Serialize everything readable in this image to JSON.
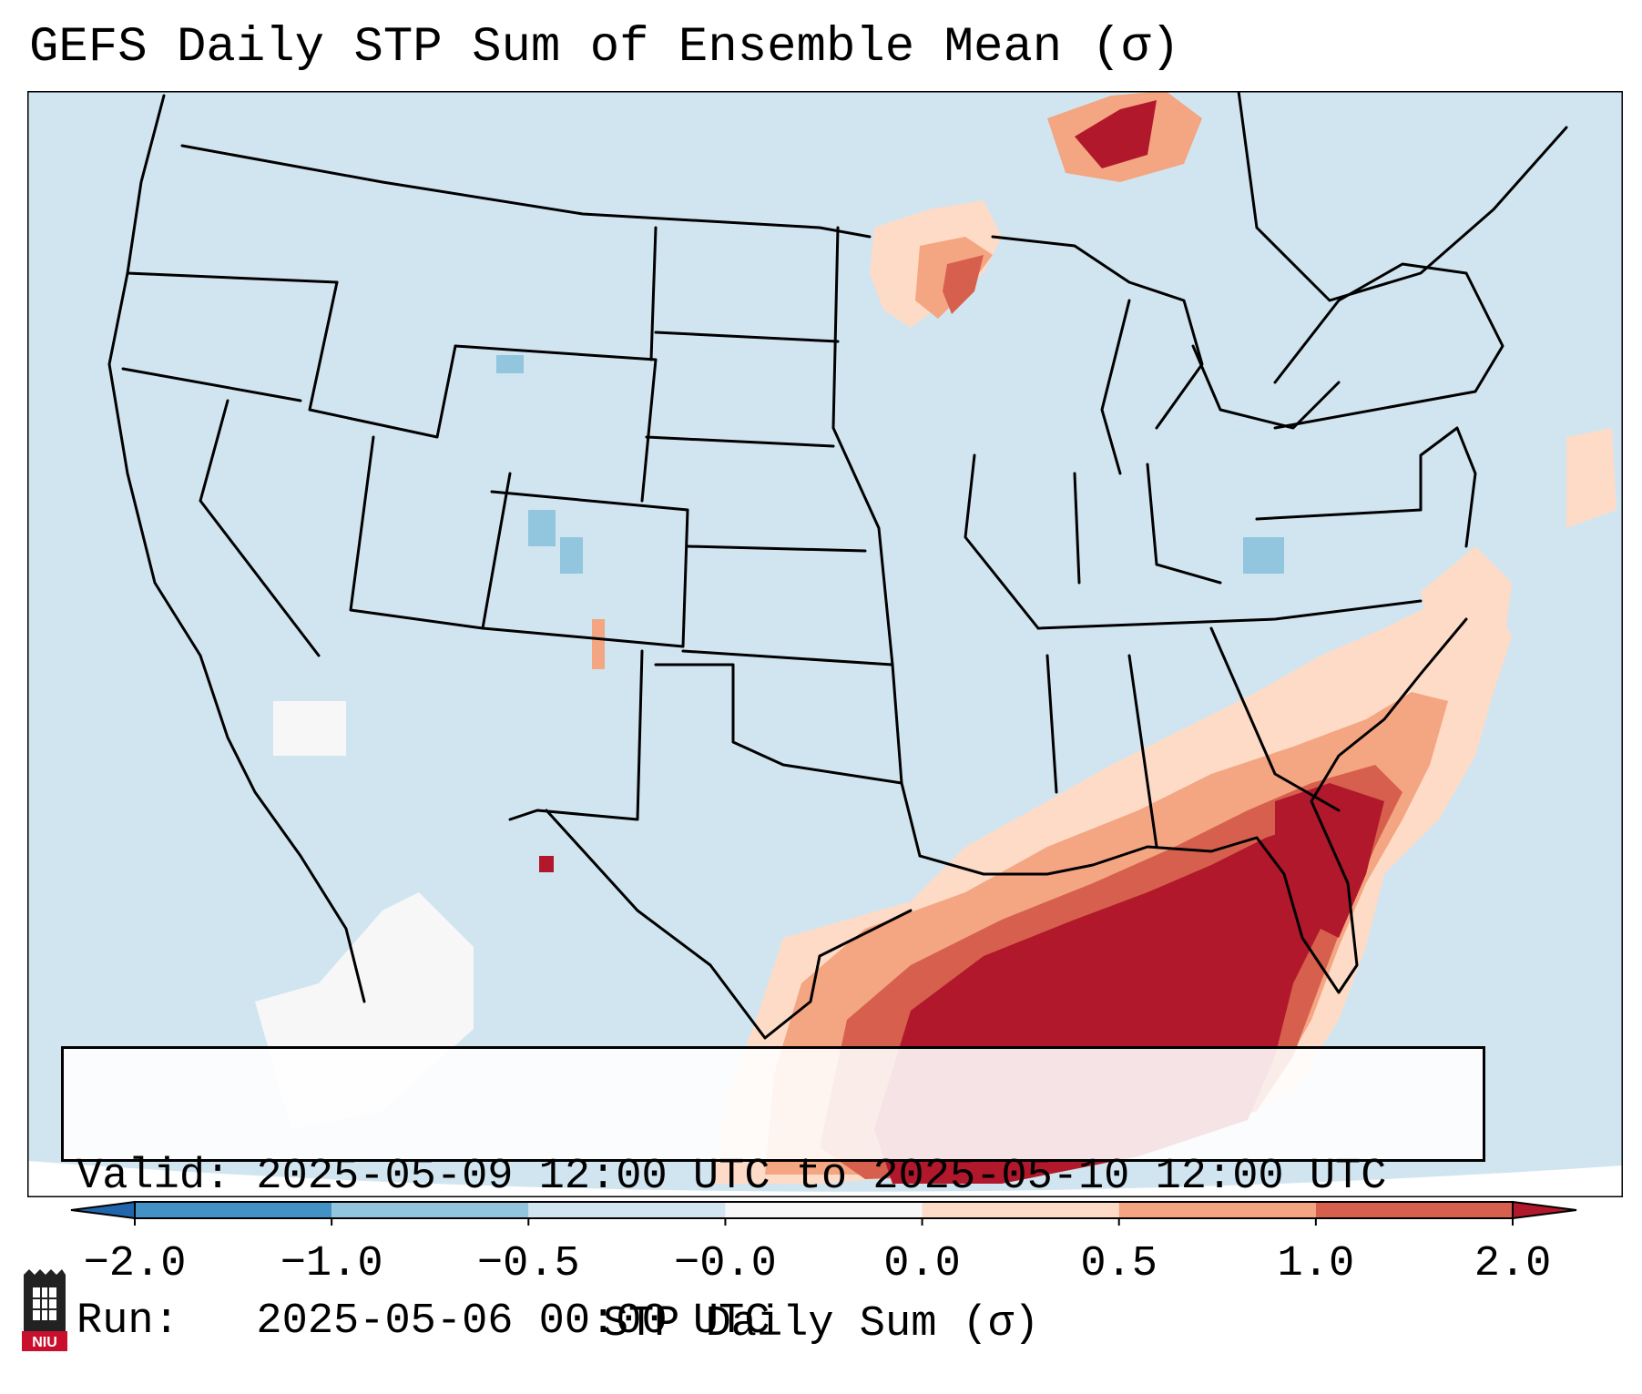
{
  "title": "GEFS Daily STP Sum of Ensemble Mean (σ)",
  "info": {
    "valid_line": "Valid: 2025-05-09 12:00 UTC to 2025-05-10 12:00 UTC",
    "run_line": "Run:   2025-05-06 00:00 UTC"
  },
  "colorbar": {
    "label": "STP Daily Sum (σ)",
    "ticks": [
      "−2.0",
      "−1.0",
      "−0.5",
      "−0.0",
      "0.0",
      "0.5",
      "1.0",
      "2.0"
    ],
    "colors": [
      "#4292c6",
      "#92c5de",
      "#d1e5f0",
      "#f7f7f7",
      "#fddbc7",
      "#f4a582",
      "#d6604d",
      "#b2182b"
    ],
    "extend_low": "#2166ac",
    "extend_high": "#b2182b"
  },
  "map": {
    "background": "#d1e5f0",
    "labels": []
  },
  "logo": {
    "text": "NIU"
  }
}
